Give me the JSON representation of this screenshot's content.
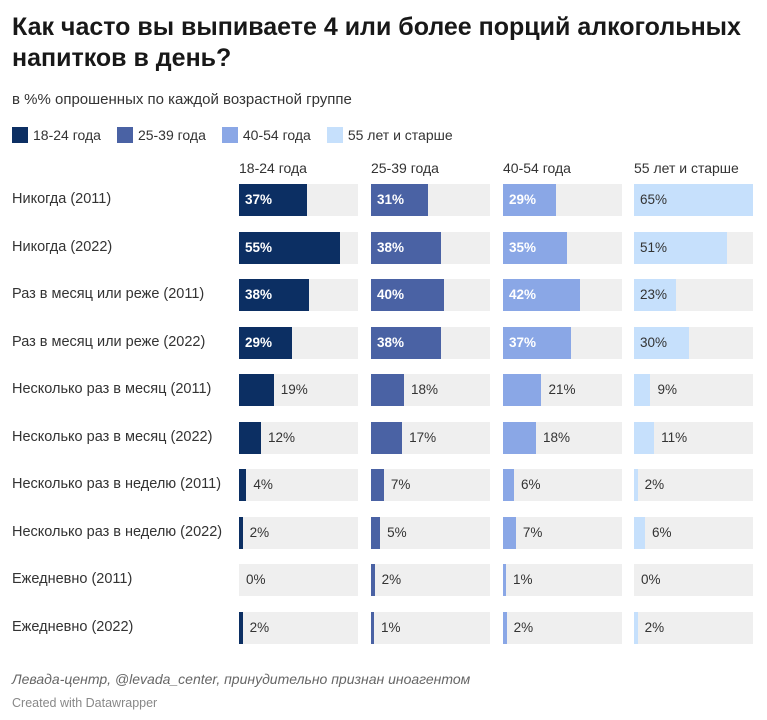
{
  "header": {
    "title": "Как часто вы выпиваете 4 или более порций алкогольных напитков в день?",
    "subtitle": "в %% опрошенных по каждой возрастной группе"
  },
  "footer": {
    "source": "Левада-центр, @levada_center, принудительно признан иноагентом",
    "credit": "Created with Datawrapper"
  },
  "chart_data": {
    "type": "bar",
    "title": "Как часто вы выпиваете 4 или более порций алкогольных напитков в день?",
    "subtitle": "в %% опрошенных по каждой возрастной группе",
    "unit": "%",
    "xlim": [
      0,
      65
    ],
    "legend_position": "top-left",
    "categories": [
      "Никогда (2011)",
      "Никогда (2022)",
      "Раз в месяц или реже (2011)",
      "Раз в месяц или реже (2022)",
      "Несколько раз в месяц (2011)",
      "Несколько раз в месяц (2022)",
      "Несколько раз в неделю (2011)",
      "Несколько раз в неделю (2022)",
      "Ежедневно (2011)",
      "Ежедневно (2022)"
    ],
    "series": [
      {
        "name": "18-24 года",
        "color": "#0c2f63",
        "values": [
          37,
          55,
          38,
          29,
          19,
          12,
          4,
          2,
          0,
          2
        ]
      },
      {
        "name": "25-39 года",
        "color": "#4a62a4",
        "values": [
          31,
          38,
          40,
          38,
          18,
          17,
          7,
          5,
          2,
          1
        ]
      },
      {
        "name": "40-54 года",
        "color": "#8aa7e6",
        "values": [
          29,
          35,
          42,
          37,
          21,
          18,
          6,
          7,
          1,
          2
        ]
      },
      {
        "name": "55 лет и старше",
        "color": "#c6e0fc",
        "values": [
          65,
          51,
          23,
          30,
          9,
          11,
          2,
          6,
          0,
          2
        ]
      }
    ]
  }
}
